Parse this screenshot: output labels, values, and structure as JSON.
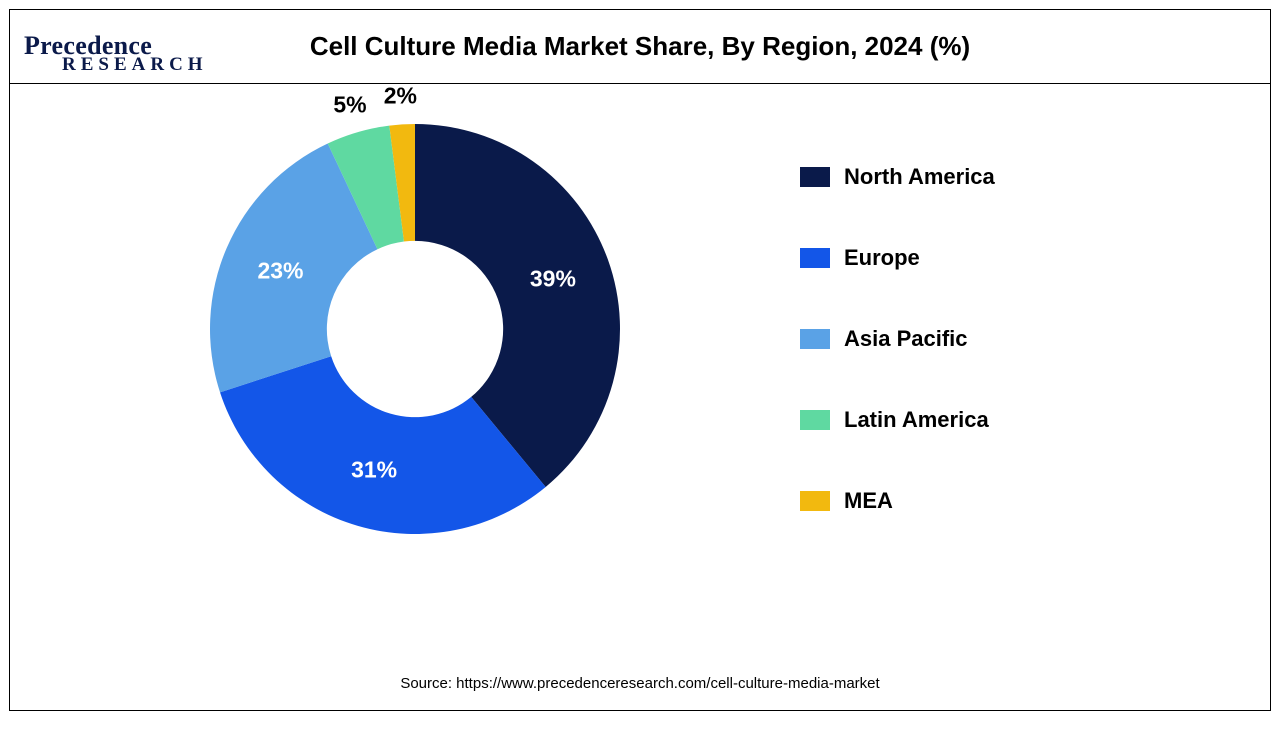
{
  "logo": {
    "line1": "Precedence",
    "line2": "RESEARCH"
  },
  "title": "Cell Culture Media Market Share, By Region, 2024 (%)",
  "chart": {
    "type": "donut",
    "inner_radius_ratio": 0.43,
    "background_color": "#ffffff",
    "start_angle_deg": 0,
    "slices": [
      {
        "label": "North America",
        "value": 39,
        "display": "39%",
        "color": "#0a1a4a",
        "label_color": "#ffffff"
      },
      {
        "label": "Europe",
        "value": 31,
        "display": "31%",
        "color": "#1356e8",
        "label_color": "#ffffff"
      },
      {
        "label": "Asia Pacific",
        "value": 23,
        "display": "23%",
        "color": "#5aa2e6",
        "label_color": "#ffffff"
      },
      {
        "label": "Latin America",
        "value": 5,
        "display": "5%",
        "color": "#5fd9a1",
        "label_color": "#000000",
        "outside": true
      },
      {
        "label": "MEA",
        "value": 2,
        "display": "2%",
        "color": "#f2b90f",
        "label_color": "#000000",
        "outside": true
      }
    ],
    "label_fontsize": 23,
    "label_fontweight": 700
  },
  "legend": {
    "swatch_w": 30,
    "swatch_h": 20,
    "fontsize": 22,
    "fontweight": 700,
    "gap": 55
  },
  "source": "Source: https://www.precedenceresearch.com/cell-culture-media-market",
  "frame": {
    "border_color": "#000000",
    "divider_color": "#000000"
  }
}
